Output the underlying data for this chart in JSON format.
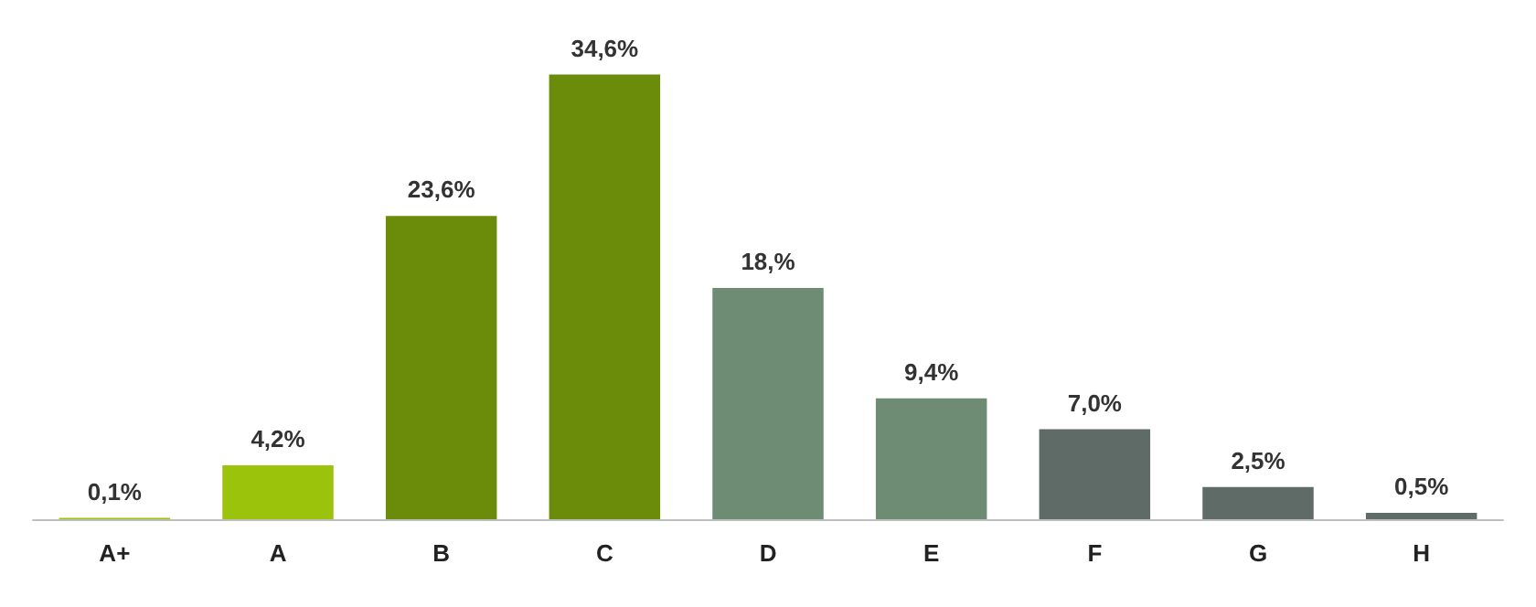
{
  "chart_data": {
    "type": "bar",
    "categories": [
      "A+",
      "A",
      "B",
      "C",
      "D",
      "E",
      "F",
      "G",
      "H"
    ],
    "values": [
      0.1,
      4.2,
      23.6,
      34.6,
      18,
      9.4,
      7.0,
      2.5,
      0.5
    ],
    "value_labels": [
      "0,1%",
      "4,2%",
      "23,6%",
      "34,6%",
      "18,%",
      "9,4%",
      "7,0%",
      "2,5%",
      "0,5%"
    ],
    "colors": [
      "#9bc30c",
      "#9bc30c",
      "#6b8c0a",
      "#6b8c0a",
      "#6e8c73",
      "#6e8c73",
      "#5f6b66",
      "#5f6b66",
      "#5f6b66"
    ],
    "grid": false
  }
}
